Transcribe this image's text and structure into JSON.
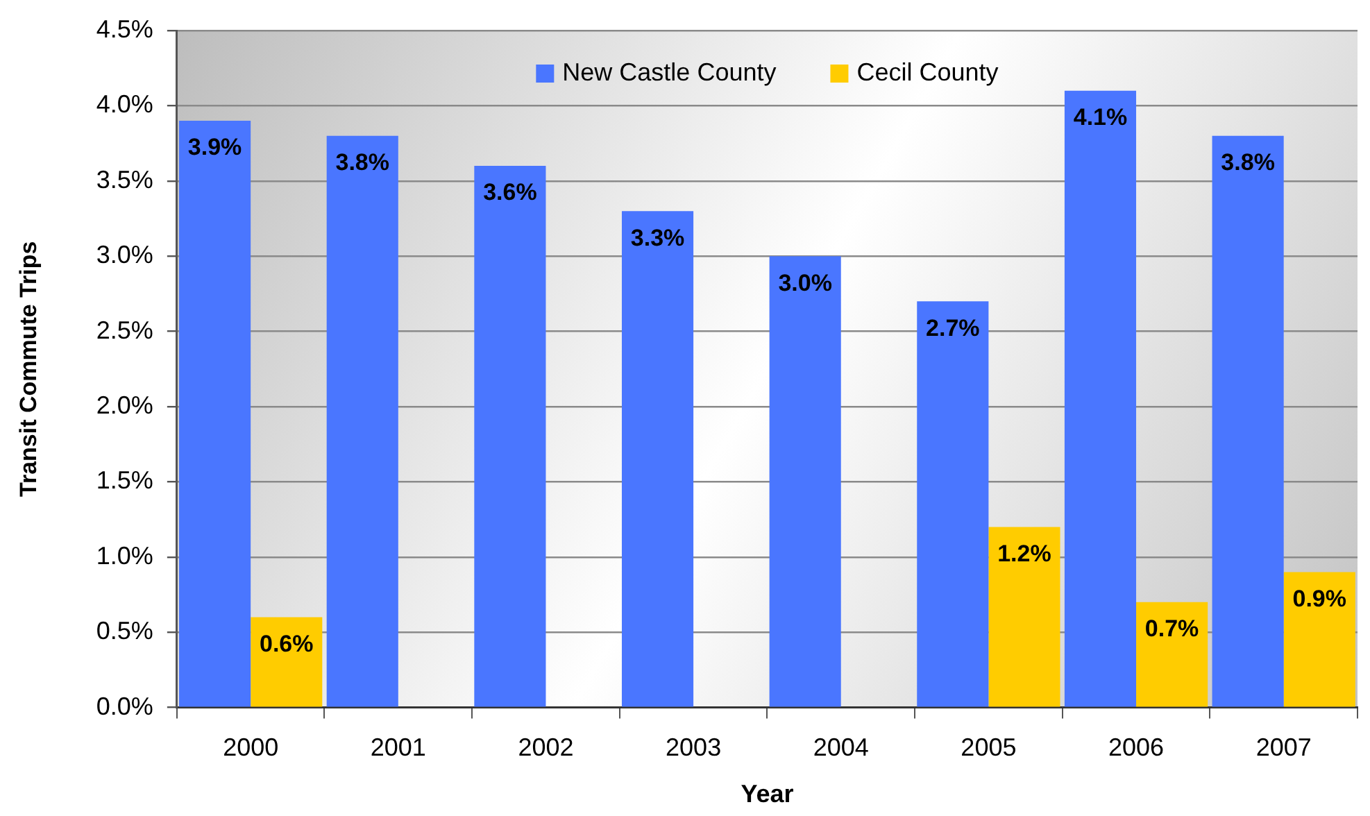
{
  "chart_data": {
    "type": "bar",
    "xlabel": "Year",
    "ylabel": "Transit Commute Trips",
    "categories": [
      "2000",
      "2001",
      "2002",
      "2003",
      "2004",
      "2005",
      "2006",
      "2007"
    ],
    "series": [
      {
        "name": "New Castle County",
        "color": "#4a76ff",
        "values": [
          3.9,
          3.8,
          3.6,
          3.3,
          3.0,
          2.7,
          4.1,
          3.8
        ],
        "value_labels": [
          "3.9%",
          "3.8%",
          "3.6%",
          "3.3%",
          "3.0%",
          "2.7%",
          "4.1%",
          "3.8%"
        ]
      },
      {
        "name": "Cecil County",
        "color": "#ffcc00",
        "values": [
          0.6,
          null,
          null,
          null,
          null,
          1.2,
          0.7,
          0.9
        ],
        "value_labels": [
          "0.6%",
          null,
          null,
          null,
          null,
          "1.2%",
          "0.7%",
          "0.9%"
        ]
      }
    ],
    "ylim": [
      0,
      4.5
    ],
    "yticks": [
      {
        "value": 0,
        "label": "0.0%"
      },
      {
        "value": 0.5,
        "label": "0.5%"
      },
      {
        "value": 1,
        "label": "1.0%"
      },
      {
        "value": 1.5,
        "label": "1.5%"
      },
      {
        "value": 2,
        "label": "2.0%"
      },
      {
        "value": 2.5,
        "label": "2.5%"
      },
      {
        "value": 3,
        "label": "3.0%"
      },
      {
        "value": 3.5,
        "label": "3.5%"
      },
      {
        "value": 4,
        "label": "4.0%"
      },
      {
        "value": 4.5,
        "label": "4.5%"
      }
    ],
    "grid": "y",
    "legend": "top"
  }
}
